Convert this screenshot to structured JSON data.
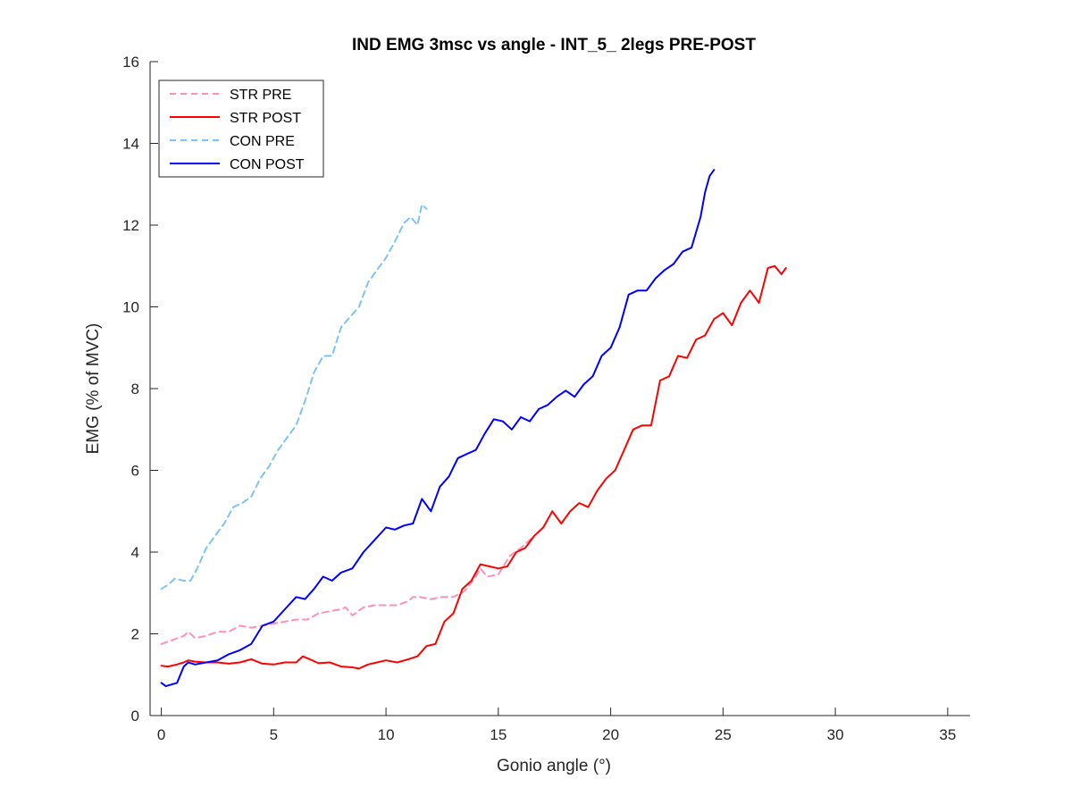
{
  "chart_data": {
    "type": "line",
    "title": "IND EMG 3msc vs angle - INT_5_ 2legs PRE-POST",
    "xlabel": "Gonio angle (°)",
    "ylabel": "EMG (% of MVC)",
    "xlim": [
      -0.5,
      36
    ],
    "ylim": [
      0,
      16
    ],
    "xticks": [
      0,
      5,
      10,
      15,
      20,
      25,
      30,
      35
    ],
    "yticks": [
      0,
      2,
      4,
      6,
      8,
      10,
      12,
      14,
      16
    ],
    "xtick_labels": [
      "0",
      "5",
      "10",
      "15",
      "20",
      "25",
      "30",
      "35"
    ],
    "ytick_labels": [
      "0",
      "2",
      "4",
      "6",
      "8",
      "10",
      "12",
      "14",
      "16"
    ],
    "grid": false,
    "legend_position": "top-left",
    "series": [
      {
        "name": "STR PRE",
        "color": "#ff91b4",
        "dash": "dashed",
        "x": [
          0,
          0.5,
          1,
          1.2,
          1.5,
          2,
          2.5,
          3,
          3.5,
          4,
          4.5,
          5,
          5.5,
          6,
          6.5,
          7,
          7.5,
          8,
          8.2,
          8.5,
          9,
          9.5,
          10,
          10.5,
          11,
          11.2,
          11.5,
          12,
          12.5,
          13,
          13.5,
          14,
          14.2,
          14.5,
          15,
          15.5,
          16,
          16.5
        ],
        "y": [
          1.75,
          1.85,
          1.95,
          2.05,
          1.9,
          1.95,
          2.05,
          2.05,
          2.2,
          2.15,
          2.2,
          2.25,
          2.3,
          2.35,
          2.35,
          2.5,
          2.55,
          2.6,
          2.65,
          2.45,
          2.65,
          2.7,
          2.7,
          2.7,
          2.8,
          2.9,
          2.9,
          2.85,
          2.9,
          2.9,
          3.05,
          3.4,
          3.6,
          3.4,
          3.45,
          3.9,
          4.1,
          4.35
        ]
      },
      {
        "name": "STR POST",
        "color": "#ff0000",
        "dash": "solid",
        "x": [
          0,
          0.3,
          0.7,
          1,
          1.2,
          1.5,
          2,
          2.5,
          3,
          3.5,
          4,
          4.5,
          5,
          5.5,
          6,
          6.3,
          6.6,
          7,
          7.5,
          8,
          8.5,
          8.8,
          9.2,
          9.6,
          10,
          10.5,
          11,
          11.4,
          11.8,
          12.2,
          12.6,
          13,
          13.4,
          13.8,
          14.2,
          14.6,
          15,
          15.4,
          15.8,
          16.2,
          16.6,
          17,
          17.4,
          17.8,
          18.2,
          18.6,
          19,
          19.4,
          19.8,
          20.2,
          20.6,
          21,
          21.4,
          21.8,
          22.2,
          22.6,
          23,
          23.4,
          23.8,
          24.2,
          24.6,
          25,
          25.4,
          25.8,
          26.2,
          26.6,
          27,
          27.3,
          27.6,
          27.8
        ],
        "y": [
          1.22,
          1.2,
          1.25,
          1.3,
          1.35,
          1.32,
          1.3,
          1.3,
          1.27,
          1.3,
          1.38,
          1.27,
          1.25,
          1.3,
          1.3,
          1.45,
          1.38,
          1.28,
          1.3,
          1.2,
          1.18,
          1.15,
          1.25,
          1.3,
          1.35,
          1.3,
          1.38,
          1.45,
          1.7,
          1.75,
          2.3,
          2.5,
          3.1,
          3.3,
          3.7,
          3.65,
          3.6,
          3.65,
          4.0,
          4.1,
          4.4,
          4.6,
          5.0,
          4.7,
          5.0,
          5.2,
          5.1,
          5.5,
          5.8,
          6.0,
          6.5,
          7.0,
          7.1,
          7.1,
          8.2,
          8.3,
          8.8,
          8.75,
          9.2,
          9.3,
          9.7,
          9.85,
          9.55,
          10.1,
          10.4,
          10.1,
          10.95,
          11.0,
          10.8,
          10.95
        ]
      },
      {
        "name": "CON PRE",
        "color": "#7ec3f5",
        "dash": "dashed",
        "x": [
          0,
          0.3,
          0.6,
          1,
          1.3,
          1.6,
          2,
          2.4,
          2.8,
          3.2,
          3.6,
          4,
          4.4,
          4.8,
          5.2,
          5.6,
          6,
          6.4,
          6.8,
          7.2,
          7.6,
          8,
          8.4,
          8.8,
          9.2,
          9.6,
          10,
          10.4,
          10.8,
          11.1,
          11.4,
          11.6,
          11.8
        ],
        "y": [
          3.1,
          3.2,
          3.35,
          3.3,
          3.3,
          3.6,
          4.1,
          4.4,
          4.7,
          5.1,
          5.2,
          5.35,
          5.8,
          6.1,
          6.5,
          6.8,
          7.1,
          7.7,
          8.4,
          8.8,
          8.8,
          9.5,
          9.75,
          10.0,
          10.6,
          10.9,
          11.2,
          11.6,
          12.05,
          12.2,
          12.0,
          12.5,
          12.4
        ]
      },
      {
        "name": "CON POST",
        "color": "#0000ff",
        "dash": "solid",
        "x": [
          0,
          0.2,
          0.7,
          1,
          1.2,
          1.5,
          2,
          2.5,
          3,
          3.5,
          4,
          4.5,
          5,
          5.5,
          6,
          6.4,
          6.8,
          7.2,
          7.6,
          8,
          8.5,
          9,
          9.5,
          10,
          10.4,
          10.8,
          11.2,
          11.6,
          12,
          12.4,
          12.8,
          13.2,
          13.6,
          14,
          14.4,
          14.8,
          15.2,
          15.6,
          16,
          16.4,
          16.8,
          17.2,
          17.6,
          18,
          18.4,
          18.8,
          19.2,
          19.6,
          20,
          20.4,
          20.8,
          21.2,
          21.6,
          22,
          22.4,
          22.8,
          23.2,
          23.6,
          24,
          24.2,
          24.4,
          24.6
        ],
        "y": [
          0.8,
          0.72,
          0.8,
          1.2,
          1.3,
          1.25,
          1.3,
          1.35,
          1.5,
          1.6,
          1.75,
          2.2,
          2.3,
          2.6,
          2.9,
          2.85,
          3.1,
          3.4,
          3.3,
          3.5,
          3.6,
          4.0,
          4.3,
          4.6,
          4.55,
          4.65,
          4.7,
          5.3,
          5.0,
          5.6,
          5.85,
          6.3,
          6.4,
          6.5,
          6.9,
          7.25,
          7.2,
          7.0,
          7.3,
          7.2,
          7.5,
          7.6,
          7.8,
          7.95,
          7.8,
          8.1,
          8.3,
          8.8,
          9.0,
          9.5,
          10.3,
          10.4,
          10.4,
          10.7,
          10.9,
          11.05,
          11.35,
          11.45,
          12.2,
          12.8,
          13.2,
          13.35
        ]
      }
    ]
  }
}
